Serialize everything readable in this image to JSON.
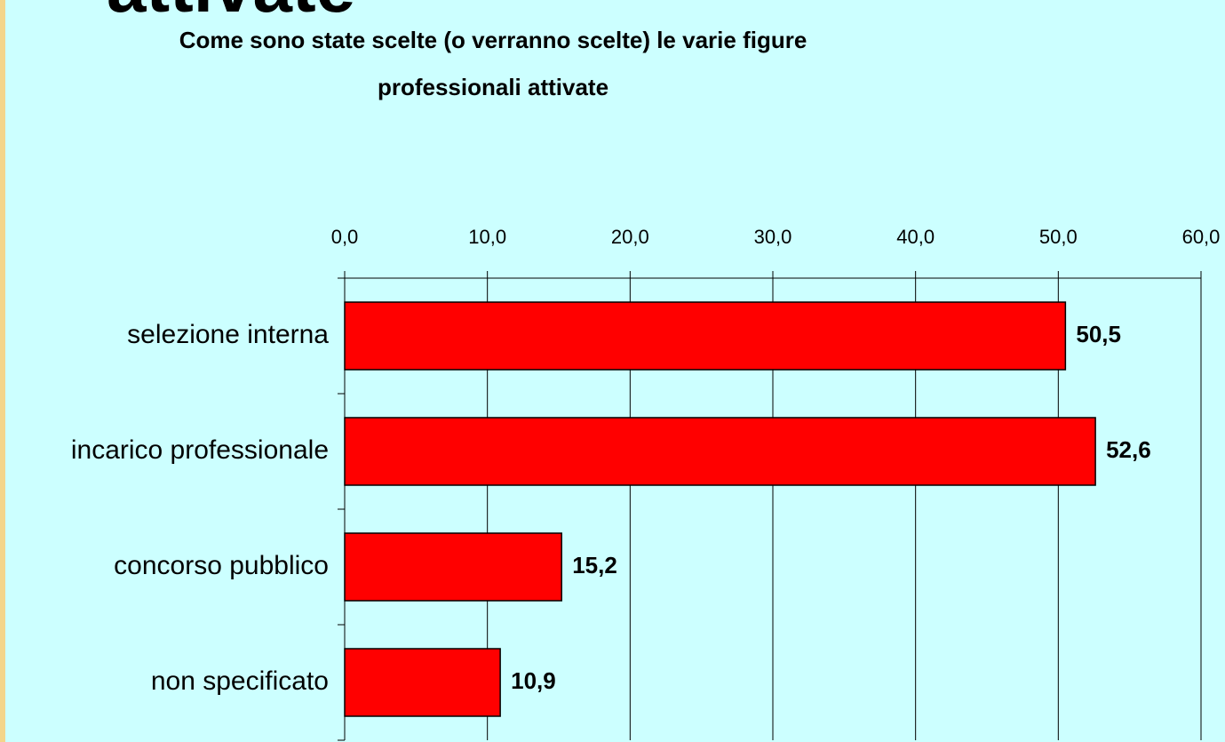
{
  "heading": "attivate",
  "chart_data": {
    "type": "hbar",
    "title": [
      "Come sono state scelte (o verranno scelte) le varie figure",
      "professionali attivate"
    ],
    "categories": [
      "selezione interna",
      "incarico professionale",
      "concorso pubblico",
      "non specificato"
    ],
    "values": [
      50.5,
      52.6,
      15.2,
      10.9
    ],
    "value_labels": [
      "50,5",
      "52,6",
      "15,2",
      "10,9"
    ],
    "color": "#ff0000",
    "xlim": [
      0,
      60
    ],
    "xticks": [
      {
        "value": 0,
        "label": "0,0"
      },
      {
        "value": 10,
        "label": "10,0"
      },
      {
        "value": 20,
        "label": "20,0"
      },
      {
        "value": 30,
        "label": "30,0"
      },
      {
        "value": 40,
        "label": "40,0"
      },
      {
        "value": 50,
        "label": "50,0"
      },
      {
        "value": 60,
        "label": "60,0"
      }
    ],
    "grid": true
  }
}
